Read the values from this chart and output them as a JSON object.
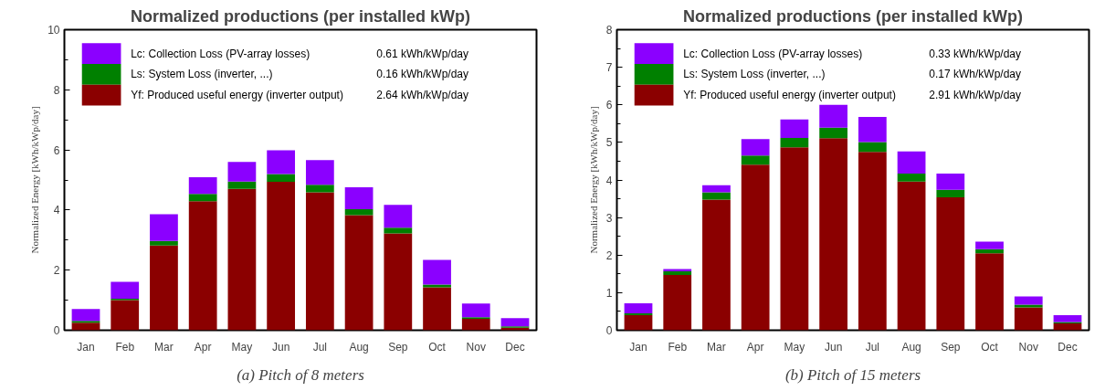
{
  "chart_data": [
    {
      "type": "bar",
      "stacked": true,
      "title": "Normalized productions (per installed kWp)",
      "ylabel": "Normalized Energy [kWh/kWp/day]",
      "categories": [
        "Jan",
        "Feb",
        "Mar",
        "Apr",
        "May",
        "Jun",
        "Jul",
        "Aug",
        "Sep",
        "Oct",
        "Nov",
        "Dec"
      ],
      "ylim": [
        0,
        10
      ],
      "yticks": [
        0,
        2,
        4,
        6,
        8,
        10
      ],
      "grid": false,
      "legend": "top left",
      "series": [
        {
          "name": "Yf: Produced useful energy  (inverter output)",
          "color": "#8b0000",
          "values": [
            0.25,
            1.0,
            2.82,
            4.29,
            4.7,
            4.94,
            4.59,
            3.83,
            3.22,
            1.43,
            0.38,
            0.08
          ]
        },
        {
          "name": "Ls: System Loss  (inverter, ...)",
          "color": "#008000",
          "values": [
            0.06,
            0.05,
            0.15,
            0.25,
            0.25,
            0.26,
            0.25,
            0.2,
            0.19,
            0.09,
            0.05,
            0.05
          ]
        },
        {
          "name": "Lc: Collection Loss (PV-array losses)",
          "color": "#8b00ff",
          "values": [
            0.4,
            0.56,
            0.89,
            0.55,
            0.65,
            0.79,
            0.82,
            0.73,
            0.76,
            0.82,
            0.46,
            0.27
          ]
        }
      ],
      "annotations": [
        "2.64 kWh/kWp/day",
        "0.16 kWh/kWp/day",
        "0.61 kWh/kWp/day",
        "(a) Pitch of 8 meters"
      ]
    },
    {
      "type": "bar",
      "stacked": true,
      "title": "Normalized productions (per installed kWp)",
      "ylabel": "Normalized Energy [kWh/kWp/day]",
      "categories": [
        "Jan",
        "Feb",
        "Mar",
        "Apr",
        "May",
        "Jun",
        "Jul",
        "Aug",
        "Sep",
        "Oct",
        "Nov",
        "Dec"
      ],
      "ylim": [
        0,
        8
      ],
      "yticks": [
        0,
        1,
        2,
        3,
        4,
        5,
        6,
        7,
        8
      ],
      "grid": false,
      "legend": "top left",
      "series": [
        {
          "name": "Yf: Produced useful energy  (inverter output)",
          "color": "#8b0000",
          "values": [
            0.4,
            1.47,
            3.48,
            4.41,
            4.87,
            5.11,
            4.75,
            3.96,
            3.54,
            2.05,
            0.61,
            0.18
          ]
        },
        {
          "name": "Ls: System Loss  (inverter, ...)",
          "color": "#008000",
          "values": [
            0.05,
            0.1,
            0.19,
            0.24,
            0.25,
            0.28,
            0.26,
            0.21,
            0.2,
            0.11,
            0.07,
            0.04
          ]
        },
        {
          "name": "Lc: Collection Loss (PV-array losses)",
          "color": "#8b00ff",
          "values": [
            0.27,
            0.06,
            0.19,
            0.44,
            0.49,
            0.61,
            0.67,
            0.59,
            0.43,
            0.2,
            0.22,
            0.18
          ]
        }
      ],
      "annotations": [
        "2.91 kWh/kWp/day",
        "0.17 kWh/kWp/day",
        "0.33 kWh/kWp/day",
        "(b) Pitch of 15 meters"
      ]
    }
  ]
}
